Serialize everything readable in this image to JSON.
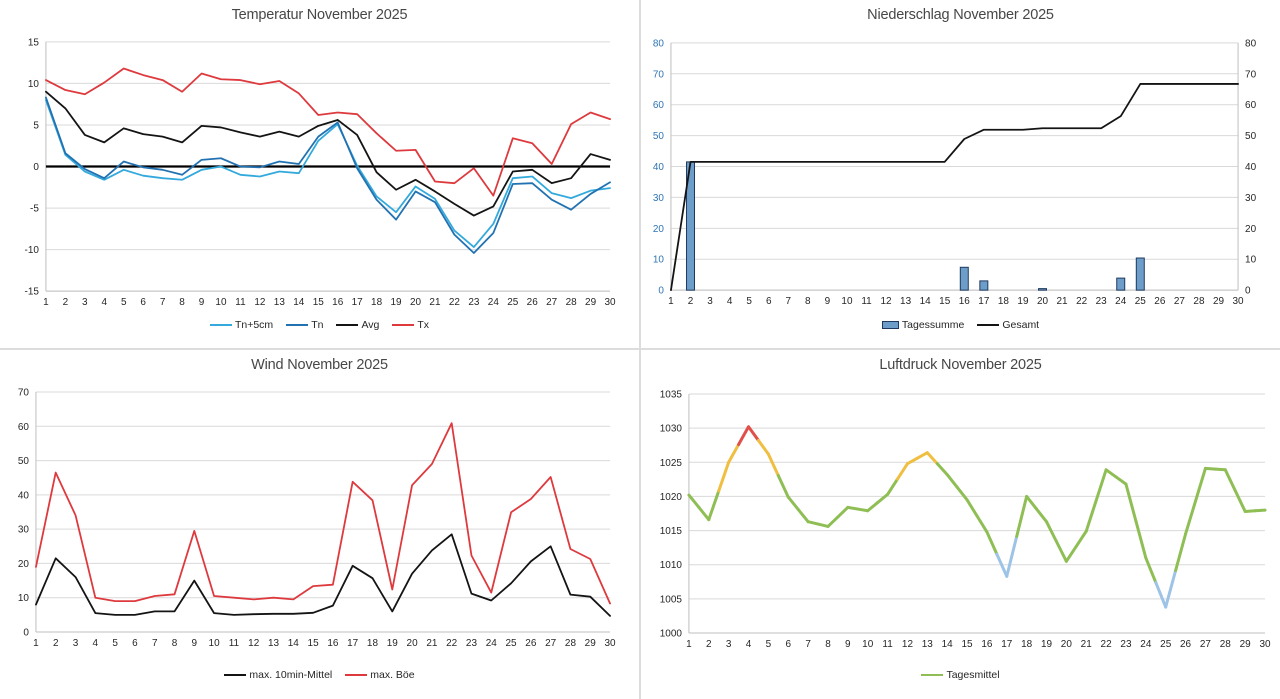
{
  "days": [
    1,
    2,
    3,
    4,
    5,
    6,
    7,
    8,
    9,
    10,
    11,
    12,
    13,
    14,
    15,
    16,
    17,
    18,
    19,
    20,
    21,
    22,
    23,
    24,
    25,
    26,
    27,
    28,
    29,
    30
  ],
  "style": {
    "grid_color": "#d9d9d9",
    "axis_color": "#bfbfbf",
    "tick_text_color": "#262626",
    "title_color": "#474747",
    "zero_line_color": "#000000"
  },
  "chart_data": [
    {
      "id": "temperature",
      "type": "line",
      "title": "Temperatur November 2025",
      "ylim": [
        -15,
        15
      ],
      "y_ticks": [
        -15,
        -10,
        -5,
        0,
        5,
        10,
        15
      ],
      "zero_line": true,
      "grid": true,
      "legend_position": "bottom",
      "series": [
        {
          "name": "Tn+5cm",
          "color": "#33A9DC",
          "values": [
            8.0,
            1.4,
            -0.6,
            -1.6,
            -0.4,
            -1.1,
            -1.4,
            -1.6,
            -0.4,
            0.0,
            -1.0,
            -1.2,
            -0.6,
            -0.8,
            3.1,
            5.1,
            0.1,
            -3.6,
            -5.5,
            -2.4,
            -3.9,
            -7.7,
            -9.7,
            -6.9,
            -1.4,
            -1.2,
            -3.2,
            -3.8,
            -2.9,
            -2.6
          ]
        },
        {
          "name": "Tn",
          "color": "#2272B2",
          "values": [
            8.3,
            1.6,
            -0.3,
            -1.4,
            0.6,
            -0.1,
            -0.4,
            -1.0,
            0.8,
            1.0,
            0.0,
            -0.1,
            0.6,
            0.3,
            3.6,
            5.3,
            -0.2,
            -4.0,
            -6.4,
            -3.0,
            -4.3,
            -8.2,
            -10.4,
            -8.0,
            -2.1,
            -2.0,
            -4.0,
            -5.2,
            -3.3,
            -1.9
          ]
        },
        {
          "name": "Avg",
          "color": "#141414",
          "values": [
            9.0,
            7.0,
            3.8,
            2.9,
            4.6,
            3.9,
            3.6,
            2.9,
            4.9,
            4.7,
            4.1,
            3.6,
            4.2,
            3.6,
            4.9,
            5.6,
            3.8,
            -0.7,
            -2.8,
            -1.6,
            -3.0,
            -4.5,
            -5.9,
            -4.8,
            -0.6,
            -0.4,
            -2.0,
            -1.4,
            1.5,
            0.8
          ]
        },
        {
          "name": "Tx",
          "color": "#DE3A3E",
          "values": [
            10.4,
            9.2,
            8.7,
            10.1,
            11.8,
            11.0,
            10.4,
            9.0,
            11.2,
            10.5,
            10.4,
            9.9,
            10.3,
            8.8,
            6.2,
            6.5,
            6.3,
            4.0,
            1.9,
            2.0,
            -1.8,
            -2.0,
            -0.2,
            -3.5,
            3.4,
            2.8,
            0.3,
            5.1,
            6.5,
            5.7
          ]
        }
      ],
      "legend": [
        {
          "label": "Tn+5cm",
          "color": "#33A9DC",
          "swatch": "line"
        },
        {
          "label": "Tn",
          "color": "#2272B2",
          "swatch": "line"
        },
        {
          "label": "Avg",
          "color": "#141414",
          "swatch": "line"
        },
        {
          "label": "Tx",
          "color": "#DE3A3E",
          "swatch": "line"
        }
      ]
    },
    {
      "id": "precipitation",
      "type": "bar+line",
      "title": "Niederschlag November 2025",
      "ylim": [
        0,
        80
      ],
      "y_ticks": [
        0,
        10,
        20,
        30,
        40,
        50,
        60,
        70,
        80
      ],
      "left_axis_label_color": "#2E75B6",
      "right_axis_labels": true,
      "grid": true,
      "legend_position": "bottom",
      "bar_series": {
        "name": "Tagessumme",
        "fill": "#6D9DC9",
        "stroke": "#1E3A5F",
        "values": [
          0,
          41.5,
          0,
          0,
          0,
          0,
          0,
          0,
          0,
          0,
          0,
          0,
          0,
          0,
          0,
          7.4,
          3.0,
          0,
          0,
          0.5,
          0,
          0,
          0,
          3.9,
          10.4,
          0,
          0,
          0,
          0,
          0
        ]
      },
      "line_series": {
        "name": "Gesamt",
        "color": "#141414",
        "values": [
          0,
          41.5,
          41.5,
          41.5,
          41.5,
          41.5,
          41.5,
          41.5,
          41.5,
          41.5,
          41.5,
          41.5,
          41.5,
          41.5,
          41.5,
          48.9,
          51.9,
          51.9,
          51.9,
          52.4,
          52.4,
          52.4,
          52.4,
          56.3,
          66.7,
          66.7,
          66.7,
          66.7,
          66.7,
          66.7
        ]
      },
      "legend": [
        {
          "label": "Tagessumme",
          "color": "#6D9DC9",
          "swatch": "rect"
        },
        {
          "label": "Gesamt",
          "color": "#141414",
          "swatch": "line"
        }
      ]
    },
    {
      "id": "wind",
      "type": "line",
      "title": "Wind November 2025",
      "ylim": [
        0,
        70
      ],
      "y_ticks": [
        0,
        10,
        20,
        30,
        40,
        50,
        60,
        70
      ],
      "grid": true,
      "legend_position": "bottom",
      "series": [
        {
          "name": "max. 10min-Mittel",
          "color": "#141414",
          "values": [
            8.0,
            21.5,
            16.0,
            5.5,
            5.0,
            5.0,
            6.0,
            6.0,
            15.0,
            5.5,
            5.0,
            5.2,
            5.3,
            5.3,
            5.6,
            7.7,
            19.3,
            15.7,
            6.0,
            17.0,
            23.8,
            28.5,
            11.2,
            9.2,
            14.2,
            20.6,
            25.0,
            10.9,
            10.3,
            4.7
          ]
        },
        {
          "name": "max. Böe",
          "color": "#DE3A3E",
          "values": [
            19.0,
            46.5,
            34.0,
            10.0,
            9.0,
            9.0,
            10.5,
            11.0,
            29.5,
            10.5,
            10.0,
            9.5,
            10.0,
            9.5,
            13.4,
            13.8,
            43.8,
            38.4,
            12.4,
            42.8,
            49.0,
            60.9,
            22.3,
            11.5,
            34.9,
            38.8,
            45.2,
            24.2,
            21.3,
            8.3
          ]
        }
      ],
      "legend": [
        {
          "label": "max. 10min-Mittel",
          "color": "#141414",
          "swatch": "line"
        },
        {
          "label": "max. Böe",
          "color": "#DE3A3E",
          "swatch": "line"
        }
      ]
    },
    {
      "id": "pressure",
      "type": "line",
      "title": "Luftdruck November 2025",
      "ylim": [
        1000,
        1035
      ],
      "y_ticks": [
        1000,
        1005,
        1010,
        1015,
        1020,
        1025,
        1030,
        1035
      ],
      "grid": true,
      "legend_position": "bottom",
      "series": [
        {
          "name": "Tagesmittel",
          "color": "#8FBE55",
          "width": 3,
          "color_rules": {
            "red_min": 1029.5,
            "red": "#E0504A",
            "gold_min": 1024.6,
            "gold": "#F0BF42",
            "blue_max": 1010.2,
            "blue": "#9DC3E6",
            "default": "#8FBE55"
          },
          "values": [
            1020.2,
            1016.6,
            1025.0,
            1030.2,
            1026.2,
            1019.9,
            1016.3,
            1015.6,
            1018.4,
            1017.9,
            1020.3,
            1024.8,
            1026.4,
            1023.2,
            1019.5,
            1014.8,
            1008.3,
            1020.0,
            1016.3,
            1010.5,
            1014.9,
            1023.9,
            1021.8,
            1011.0,
            1003.8,
            1014.5,
            1024.1,
            1023.9,
            1017.8,
            1018.0
          ]
        }
      ],
      "legend": [
        {
          "label": "Tagesmittel",
          "color": "#8FBE55",
          "swatch": "line"
        }
      ]
    }
  ]
}
